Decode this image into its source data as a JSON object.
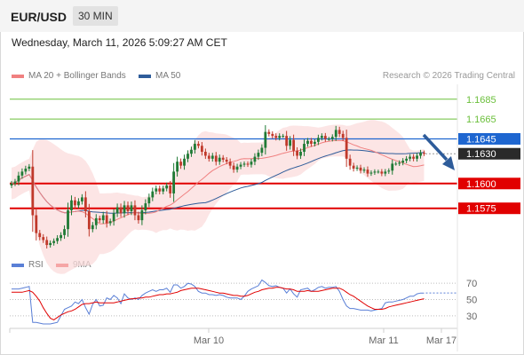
{
  "header": {
    "symbol": "EUR/USD",
    "timeframe": "30 MIN"
  },
  "timestamp": "Wednesday, March 11, 2026 5:09:27 AM CET",
  "legend": {
    "ma20": "MA 20 + Bollinger Bands",
    "ma50": "MA 50",
    "credit": "Research © 2026 Trading Central",
    "rsi": "RSI",
    "ma9": "9MA"
  },
  "colors": {
    "bull": "#1f7a35",
    "bear": "#c0392b",
    "band": "#fbdcdc",
    "ma20": "#f08080",
    "ma50": "#2e5c9a",
    "support": "#e10000",
    "resistance": "#6abf3a",
    "pivot": "#1e66d0",
    "rsi": "#5a7fd6",
    "rsi_ma": "#e10000"
  },
  "chart_data": {
    "type": "candlestick",
    "ylim": [
      1.153,
      1.17
    ],
    "x_ticks": [
      "Mar 10",
      "Mar 11",
      "Mar 17"
    ],
    "current_price": 1.163,
    "levels": {
      "resistance": [
        1.1685,
        1.1665
      ],
      "pivot": 1.1645,
      "support": [
        1.16,
        1.1575
      ]
    },
    "level_labels": [
      "1.1685",
      "1.1665",
      "1.1645",
      "1.1630",
      "1.1600",
      "1.1575"
    ],
    "closes": [
      1.16,
      1.1602,
      1.1608,
      1.1612,
      1.1615,
      1.1617,
      1.1568,
      1.155,
      1.1546,
      1.1543,
      1.1538,
      1.154,
      1.1542,
      1.1545,
      1.1548,
      1.1554,
      1.1573,
      1.1583,
      1.1578,
      1.1582,
      1.1586,
      1.1572,
      1.1554,
      1.1558,
      1.1565,
      1.1563,
      1.1568,
      1.156,
      1.1562,
      1.157,
      1.1576,
      1.157,
      1.1578,
      1.1572,
      1.1578,
      1.1568,
      1.1563,
      1.1573,
      1.158,
      1.1586,
      1.1592,
      1.1595,
      1.1592,
      1.1595,
      1.1598,
      1.159,
      1.1612,
      1.1622,
      1.1618,
      1.1625,
      1.163,
      1.1634,
      1.164,
      1.1638,
      1.1632,
      1.1628,
      1.1625,
      1.1628,
      1.1622,
      1.1626,
      1.1624,
      1.1622,
      1.1618,
      1.1614,
      1.1617,
      1.1619,
      1.162,
      1.1619,
      1.1622,
      1.1627,
      1.1631,
      1.1636,
      1.1652,
      1.165,
      1.1648,
      1.1646,
      1.1648,
      1.1648,
      1.1638,
      1.1644,
      1.1633,
      1.1628,
      1.1632,
      1.164,
      1.1643,
      1.164,
      1.1642,
      1.1646,
      1.1648,
      1.1645,
      1.1645,
      1.1647,
      1.1654,
      1.165,
      1.1646,
      1.1625,
      1.1618,
      1.1615,
      1.1616,
      1.1613,
      1.1614,
      1.161,
      1.1611,
      1.1612,
      1.1612,
      1.161,
      1.1612,
      1.1613,
      1.162,
      1.162,
      1.1621,
      1.1623,
      1.1625,
      1.1627,
      1.1625,
      1.1628,
      1.1631,
      1.163
    ],
    "rsi": {
      "levels": [
        70,
        50,
        30
      ],
      "values": [
        63,
        63,
        63,
        64,
        65,
        66,
        22,
        22,
        21,
        20,
        20,
        20,
        21,
        22,
        30,
        38,
        40,
        42,
        47,
        45,
        50,
        40,
        32,
        44,
        50,
        42,
        43,
        52,
        50,
        55,
        52,
        45,
        57,
        52,
        50,
        52,
        50,
        55,
        58,
        60,
        62,
        60,
        62,
        62,
        64,
        59,
        68,
        68,
        64,
        66,
        70,
        69,
        66,
        60,
        58,
        58,
        56,
        56,
        55,
        56,
        55,
        53,
        52,
        52,
        52,
        50,
        54,
        60,
        63,
        65,
        67,
        74,
        71,
        67,
        66,
        67,
        65,
        64,
        58,
        63,
        57,
        53,
        62,
        63,
        64,
        60,
        62,
        65,
        66,
        64,
        65,
        65,
        66,
        60,
        50,
        42,
        39,
        39,
        38,
        37,
        37,
        37,
        36,
        37,
        38,
        39,
        46,
        47,
        47,
        48,
        49,
        50,
        52,
        54,
        54,
        57,
        58,
        58
      ],
      "ma": [
        59,
        59,
        59,
        59,
        60,
        61,
        59,
        54,
        48,
        40,
        33,
        27,
        25,
        28,
        31,
        33,
        35,
        36,
        38,
        41,
        44,
        45,
        45,
        46,
        47,
        46,
        46,
        46,
        46,
        46,
        47,
        48,
        49,
        50,
        51,
        51,
        52,
        52,
        53,
        53,
        54,
        55,
        56,
        56,
        57,
        57,
        58,
        59,
        61,
        62,
        63,
        64,
        64,
        64,
        63,
        62,
        61,
        60,
        59,
        58,
        58,
        57,
        56,
        55,
        55,
        54,
        54,
        55,
        57,
        59,
        60,
        62,
        63,
        64,
        64,
        65,
        65,
        64,
        63,
        63,
        62,
        60,
        60,
        60,
        61,
        60,
        60,
        60,
        61,
        62,
        63,
        64,
        64,
        64,
        62,
        59,
        56,
        54,
        51,
        48,
        45,
        42,
        40,
        38,
        38,
        38,
        39,
        41,
        42,
        43,
        44,
        45,
        46,
        47,
        48,
        49,
        50,
        51
      ]
    }
  }
}
